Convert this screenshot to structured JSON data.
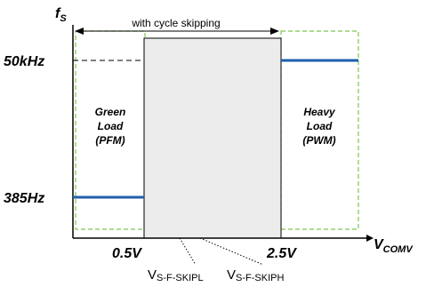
{
  "axes": {
    "y_label_main": "f",
    "y_label_sub": "S",
    "x_label_main": "V",
    "x_label_sub": "COMV"
  },
  "y_ticks": {
    "high": "50kHz",
    "low": "385Hz"
  },
  "x_ticks": {
    "left": "0.5V",
    "right": "2.5V"
  },
  "regions": {
    "skip_label": "with cycle skipping",
    "green_load": [
      "Green",
      "Load",
      "(PFM)"
    ],
    "heavy_load": [
      "Heavy",
      "Load",
      "(PWM)"
    ]
  },
  "thresholds": {
    "low_main": "V",
    "low_sub": "S-F-SKIPL",
    "high_main": "V",
    "high_sub": "S-F-SKIPH"
  },
  "colors": {
    "curve": "#1f5fae",
    "region_border": "#7ac74f",
    "skip_fill": "#ececec"
  }
}
